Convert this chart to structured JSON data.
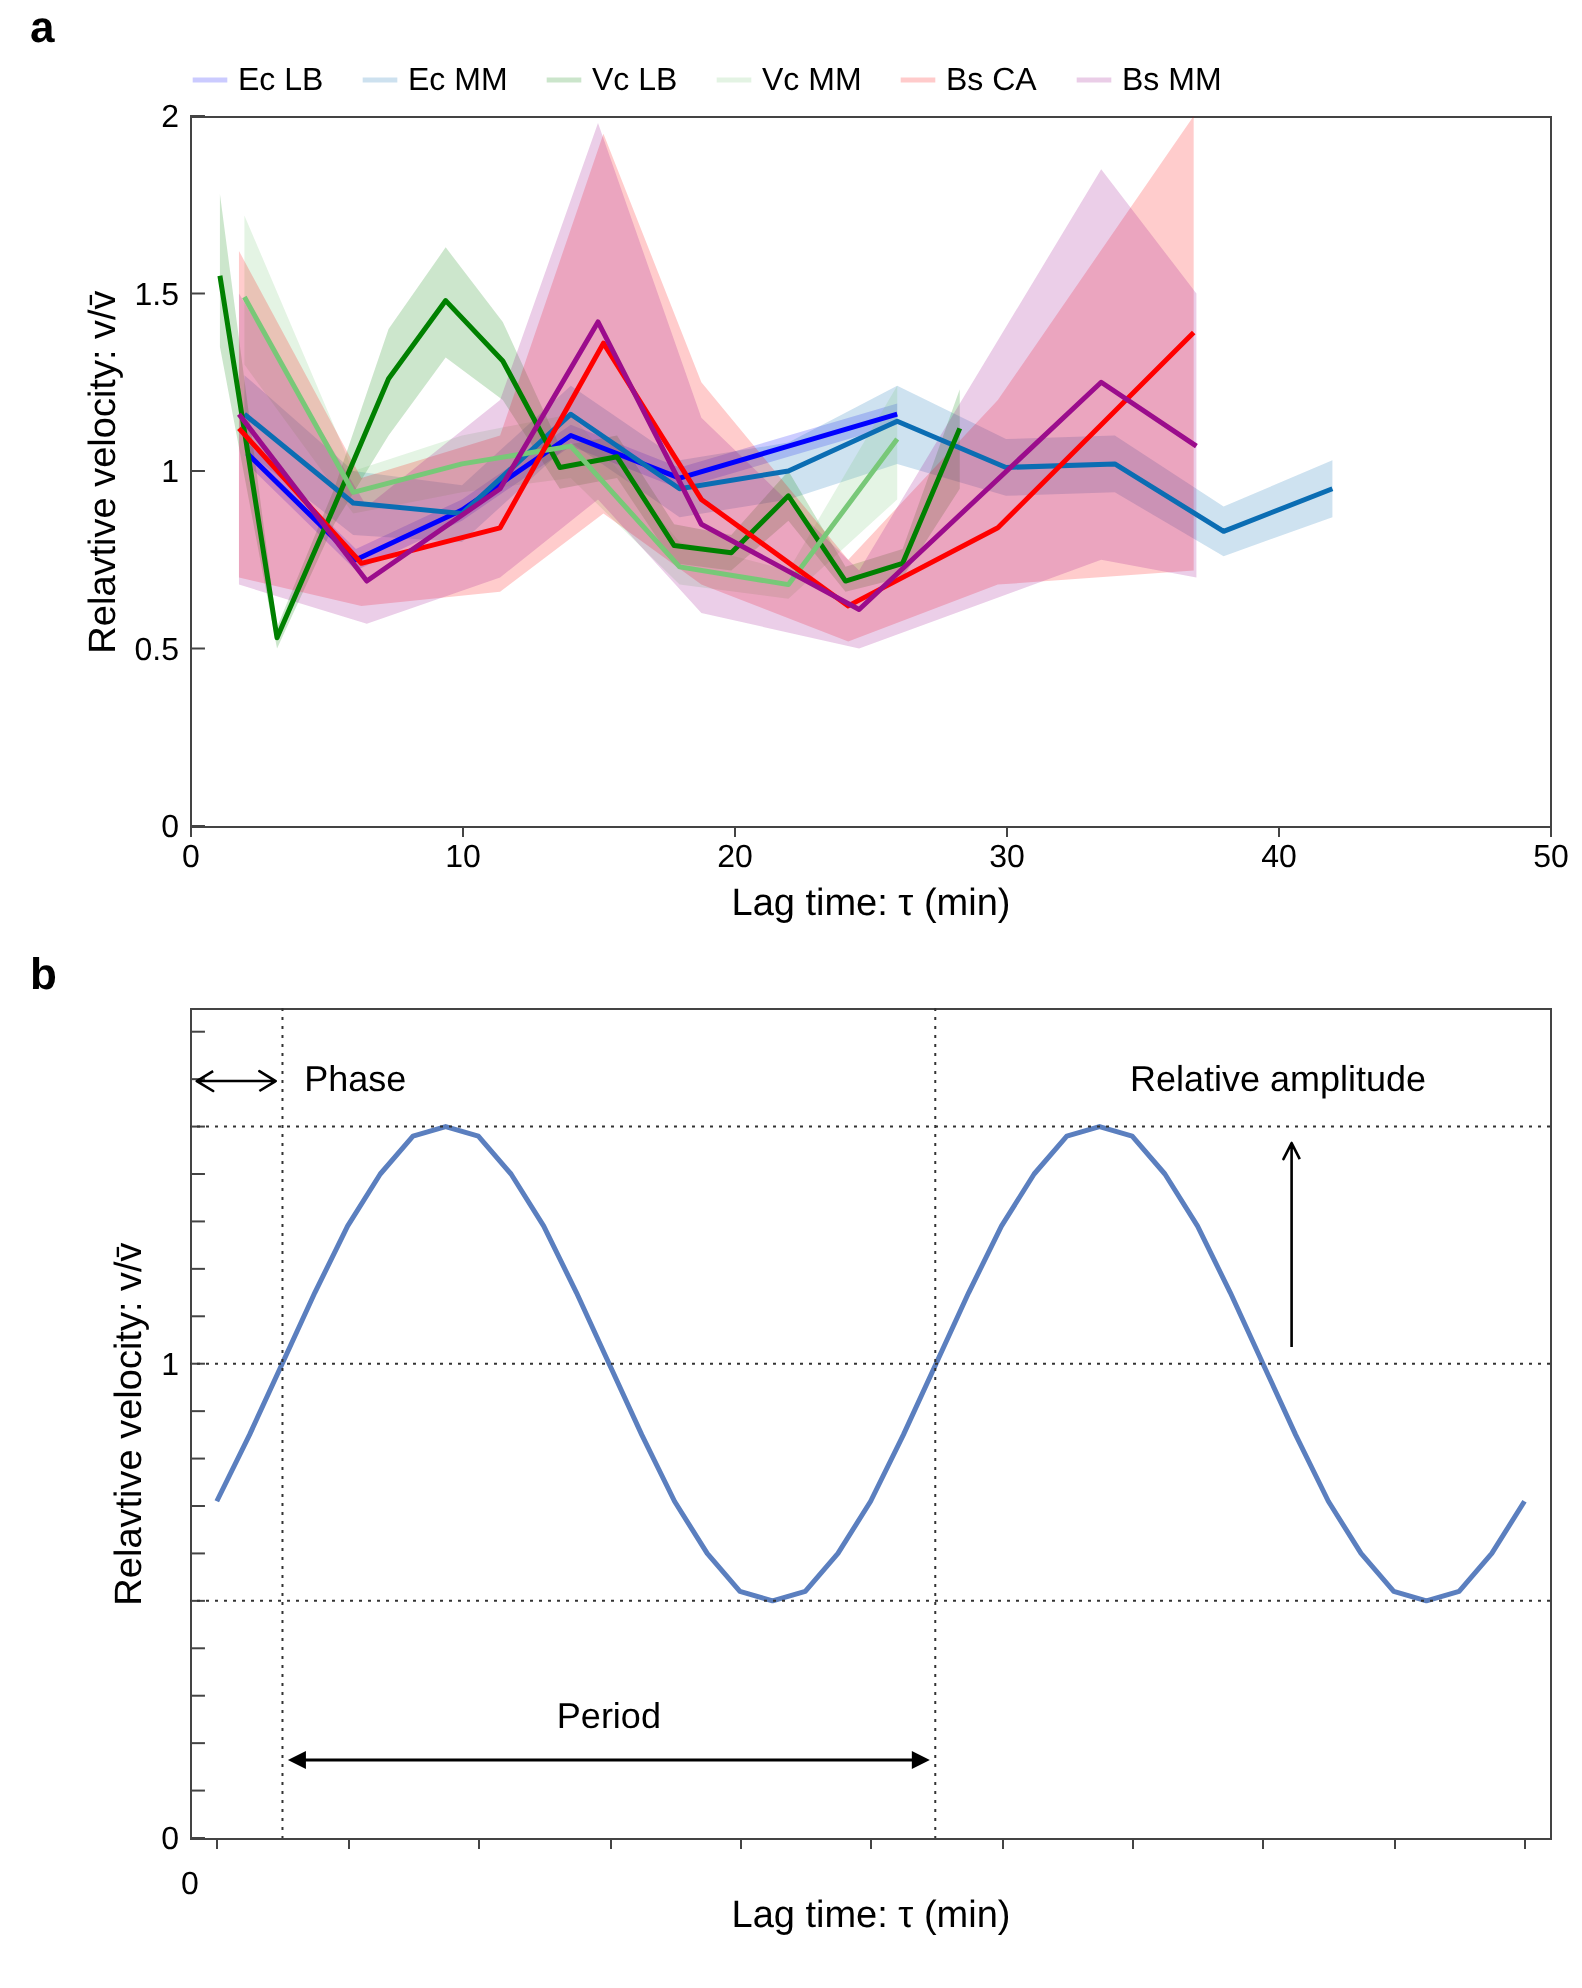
{
  "chart_data": [
    {
      "type": "line",
      "title": "a",
      "xlabel": "Lag time:  τ (min)",
      "ylabel": "Relavtive velocity:  v/v̄",
      "legend": "top",
      "xlim": [
        0,
        50
      ],
      "xticks": [
        0,
        10,
        20,
        30,
        40,
        50
      ],
      "ylim": [
        0,
        2
      ],
      "yticks": [
        0,
        0.5,
        1,
        1.5,
        2
      ],
      "series": [
        {
          "name": "Ec LB",
          "color": "#0000ff",
          "x": [
            2.1,
            6.1,
            10,
            14,
            18,
            22,
            26
          ],
          "values": [
            1.05,
            0.75,
            0.89,
            1.1,
            0.98,
            1.07,
            1.16
          ],
          "lower": [
            1.02,
            0.72,
            0.86,
            1.07,
            0.95,
            1.04,
            1.13
          ],
          "upper": [
            1.08,
            0.78,
            0.92,
            1.13,
            1.01,
            1.1,
            1.19
          ]
        },
        {
          "name": "Ec MM",
          "color": "#0b6db3",
          "x": [
            2,
            6,
            10,
            14,
            18,
            22,
            26,
            30,
            34,
            38,
            42
          ],
          "values": [
            1.16,
            0.91,
            0.88,
            1.16,
            0.95,
            1.0,
            1.14,
            1.01,
            1.02,
            0.83,
            0.95
          ],
          "lower": [
            1.06,
            0.82,
            0.8,
            1.08,
            0.87,
            0.92,
            1.02,
            0.93,
            0.94,
            0.76,
            0.87
          ],
          "upper": [
            1.27,
            1.0,
            0.96,
            1.24,
            1.03,
            1.08,
            1.24,
            1.09,
            1.1,
            0.9,
            1.03
          ]
        },
        {
          "name": "Vc LB",
          "color": "#008000",
          "x": [
            1.1,
            3.2,
            5.3,
            7.3,
            9.4,
            11.5,
            13.6,
            15.7,
            17.8,
            19.9,
            22,
            24.1,
            26.2,
            28.3
          ],
          "values": [
            1.55,
            0.53,
            0.9,
            1.26,
            1.48,
            1.31,
            1.01,
            1.04,
            0.79,
            0.77,
            0.93,
            0.69,
            0.74,
            1.12
          ],
          "lower": [
            1.35,
            0.5,
            0.85,
            1.1,
            1.32,
            1.2,
            0.95,
            0.98,
            0.74,
            0.72,
            0.86,
            0.66,
            0.7,
            0.95
          ],
          "upper": [
            1.78,
            0.56,
            0.95,
            1.4,
            1.63,
            1.42,
            1.07,
            1.1,
            0.85,
            0.82,
            1.0,
            0.73,
            0.78,
            1.23
          ]
        },
        {
          "name": "Vc MM",
          "color": "#78c878",
          "x": [
            2,
            6,
            10,
            14,
            18,
            22,
            26
          ],
          "values": [
            1.49,
            0.94,
            1.02,
            1.07,
            0.73,
            0.68,
            1.09
          ],
          "lower": [
            1.3,
            0.88,
            0.94,
            0.98,
            0.68,
            0.64,
            0.92
          ],
          "upper": [
            1.72,
            1.0,
            1.1,
            1.16,
            0.8,
            0.72,
            1.24
          ]
        },
        {
          "name": "Bs CA",
          "color": "#ff0000",
          "x": [
            1.8,
            6.3,
            11.4,
            15.2,
            18.8,
            24.2,
            29.7,
            36.9
          ],
          "values": [
            1.12,
            0.74,
            0.84,
            1.36,
            0.92,
            0.62,
            0.84,
            1.39
          ],
          "lower": [
            0.7,
            0.62,
            0.66,
            0.88,
            0.68,
            0.52,
            0.68,
            0.72
          ],
          "upper": [
            1.62,
            0.98,
            1.1,
            1.95,
            1.25,
            0.75,
            1.2,
            2.0
          ]
        },
        {
          "name": "Bs MM",
          "color": "#9b0c8c",
          "x": [
            1.8,
            6.5,
            11.4,
            15,
            18.8,
            24.6,
            33.5,
            37
          ],
          "values": [
            1.16,
            0.69,
            0.95,
            1.42,
            0.85,
            0.61,
            1.25,
            1.07
          ],
          "lower": [
            0.68,
            0.57,
            0.7,
            0.92,
            0.6,
            0.5,
            0.75,
            0.7
          ],
          "upper": [
            1.5,
            0.9,
            1.2,
            1.98,
            1.15,
            0.72,
            1.85,
            1.5
          ]
        }
      ]
    },
    {
      "type": "line",
      "title": "b",
      "xlabel": "Lag time:  τ (min)",
      "ylabel": "Relavtive velocity:  v/v̄",
      "categories": [
        null,
        null,
        null,
        null,
        null,
        null,
        null,
        null,
        null,
        null,
        null,
        null,
        null,
        null,
        null,
        null,
        null,
        null,
        null,
        null,
        null,
        null,
        null,
        null,
        null,
        null,
        null,
        null,
        null,
        null,
        null,
        null,
        null,
        null,
        null,
        null,
        null,
        null,
        null,
        null,
        null
      ],
      "ylim": [
        0,
        1.75
      ],
      "yticks": [
        0,
        {
          "value": 0.1,
          "label": null
        },
        {
          "value": 0.2,
          "label": null
        },
        {
          "value": 0.3,
          "label": null
        },
        {
          "value": 0.4,
          "label": null
        },
        {
          "value": 0.5,
          "label": null
        },
        {
          "value": 0.6,
          "label": null
        },
        {
          "value": 0.7,
          "label": null
        },
        {
          "value": 0.8,
          "label": null
        },
        {
          "value": 0.9,
          "label": null
        },
        1,
        {
          "value": 1.1,
          "label": null
        },
        {
          "value": 1.2,
          "label": null
        },
        {
          "value": 1.3,
          "label": null
        },
        {
          "value": 1.4,
          "label": null
        },
        {
          "value": 1.5,
          "label": null
        },
        {
          "value": 1.6,
          "label": null
        },
        {
          "value": 1.7,
          "label": null
        }
      ],
      "series": [
        {
          "color": "#5b7fbf",
          "values": [
            0.71,
            0.85,
            1,
            1.15,
            1.29,
            1.4,
            1.48,
            1.5,
            1.48,
            1.4,
            1.29,
            1.15,
            1,
            0.85,
            0.71,
            0.6,
            0.52,
            0.5,
            0.52,
            0.6,
            0.71,
            0.85,
            1,
            1.15,
            1.29,
            1.4,
            1.48,
            1.5,
            1.48,
            1.4,
            1.29,
            1.15,
            1,
            0.85,
            0.71,
            0.6,
            0.52,
            0.5,
            0.52,
            0.6,
            0.71
          ]
        }
      ],
      "ref_lines": [
        {
          "axis": "y",
          "value": 0.5,
          "line_style": "dotted"
        },
        {
          "axis": "y",
          "value": 1,
          "line_style": "dotted"
        },
        {
          "axis": "y",
          "value": 1.5,
          "line_style": "dotted"
        }
      ],
      "annotations": [
        "Phase",
        "Period",
        "Relative amplitude",
        "0"
      ]
    }
  ]
}
